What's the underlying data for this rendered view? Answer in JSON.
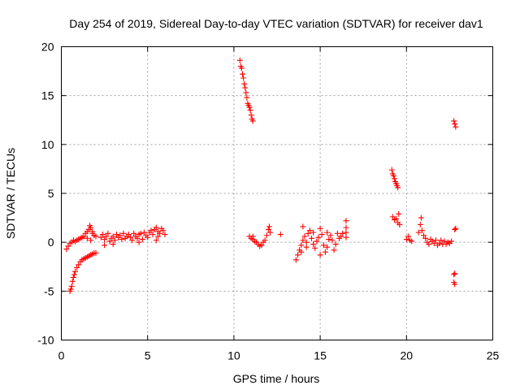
{
  "chart_data": {
    "type": "scatter",
    "title": "Day 254 of 2019, Sidereal Day-to-day VTEC variation (SDTVAR) for receiver dav1",
    "xlabel": "GPS time / hours",
    "ylabel": "SDTVAR / TECUs",
    "xlim": [
      0,
      25
    ],
    "ylim": [
      -10,
      20
    ],
    "x_ticks": [
      0,
      5,
      10,
      15,
      20,
      25
    ],
    "x_tick_labels": [
      "0",
      "5",
      "10",
      "15",
      "20",
      "25"
    ],
    "y_ticks": [
      -10,
      -5,
      0,
      5,
      10,
      15,
      20
    ],
    "y_tick_labels": [
      "-10",
      "-5",
      "0",
      "5",
      "10",
      "15",
      "20"
    ],
    "grid": true,
    "marker": "+",
    "series_color": "#ff0000",
    "series": [
      {
        "name": "dav1",
        "points": [
          [
            0.3,
            -0.7
          ],
          [
            0.4,
            -0.4
          ],
          [
            0.5,
            -0.1
          ],
          [
            0.6,
            0.0
          ],
          [
            0.7,
            0.2
          ],
          [
            0.8,
            0.1
          ],
          [
            0.9,
            0.2
          ],
          [
            1.0,
            0.3
          ],
          [
            1.1,
            0.4
          ],
          [
            1.2,
            0.5
          ],
          [
            1.3,
            0.6
          ],
          [
            1.4,
            0.9
          ],
          [
            1.5,
            1.1
          ],
          [
            1.6,
            1.3
          ],
          [
            1.65,
            1.7
          ],
          [
            1.7,
            1.5
          ],
          [
            1.8,
            1.1
          ],
          [
            1.9,
            0.7
          ],
          [
            2.0,
            0.6
          ],
          [
            1.7,
            0.2
          ],
          [
            1.5,
            0.4
          ],
          [
            1.8,
            0.9
          ],
          [
            0.5,
            -5.0
          ],
          [
            0.55,
            -4.8
          ],
          [
            0.6,
            -4.5
          ],
          [
            0.65,
            -4.0
          ],
          [
            0.7,
            -3.6
          ],
          [
            0.75,
            -3.3
          ],
          [
            0.8,
            -3.0
          ],
          [
            0.9,
            -2.6
          ],
          [
            1.0,
            -2.3
          ],
          [
            1.1,
            -2.0
          ],
          [
            1.2,
            -1.8
          ],
          [
            1.3,
            -1.7
          ],
          [
            1.4,
            -1.6
          ],
          [
            1.5,
            -1.5
          ],
          [
            1.6,
            -1.4
          ],
          [
            1.7,
            -1.3
          ],
          [
            1.8,
            -1.2
          ],
          [
            1.9,
            -1.1
          ],
          [
            2.0,
            -1.1
          ],
          [
            2.3,
            0.5
          ],
          [
            2.4,
            0.8
          ],
          [
            2.5,
            0.3
          ],
          [
            2.6,
            0.6
          ],
          [
            2.7,
            0.9
          ],
          [
            2.8,
            0.1
          ],
          [
            2.9,
            0.4
          ],
          [
            3.0,
            0.6
          ],
          [
            3.1,
            0.2
          ],
          [
            3.2,
            0.8
          ],
          [
            3.3,
            0.5
          ],
          [
            3.4,
            0.7
          ],
          [
            3.5,
            0.3
          ],
          [
            3.6,
            0.9
          ],
          [
            3.7,
            0.4
          ],
          [
            3.8,
            0.6
          ],
          [
            3.9,
            0.8
          ],
          [
            4.0,
            0.5
          ],
          [
            4.1,
            0.2
          ],
          [
            4.2,
            0.9
          ],
          [
            4.3,
            0.6
          ],
          [
            4.4,
            0.4
          ],
          [
            4.5,
            0.8
          ],
          [
            4.6,
            0.9
          ],
          [
            4.7,
            0.3
          ],
          [
            4.8,
            1.0
          ],
          [
            4.9,
            0.7
          ],
          [
            5.0,
            0.5
          ],
          [
            5.1,
            1.0
          ],
          [
            5.2,
            1.2
          ],
          [
            5.3,
            0.8
          ],
          [
            5.4,
            1.3
          ],
          [
            5.5,
            1.5
          ],
          [
            5.6,
            1.1
          ],
          [
            5.7,
            0.9
          ],
          [
            5.8,
            1.4
          ],
          [
            5.9,
            1.2
          ],
          [
            6.0,
            0.8
          ],
          [
            5.5,
            0.2
          ],
          [
            5.6,
            0.6
          ],
          [
            4.5,
            0.0
          ],
          [
            3.0,
            -0.2
          ],
          [
            2.5,
            -0.3
          ],
          [
            10.35,
            18.6
          ],
          [
            10.4,
            18.0
          ],
          [
            10.45,
            17.8
          ],
          [
            10.5,
            17.2
          ],
          [
            10.55,
            16.8
          ],
          [
            10.6,
            16.2
          ],
          [
            10.65,
            15.8
          ],
          [
            10.7,
            15.3
          ],
          [
            10.75,
            14.8
          ],
          [
            10.8,
            14.2
          ],
          [
            10.85,
            14.0
          ],
          [
            10.9,
            13.8
          ],
          [
            10.95,
            13.5
          ],
          [
            11.0,
            13.0
          ],
          [
            11.05,
            12.6
          ],
          [
            11.1,
            12.4
          ],
          [
            10.9,
            0.6
          ],
          [
            11.0,
            0.4
          ],
          [
            11.1,
            0.3
          ],
          [
            11.2,
            0.1
          ],
          [
            11.3,
            0.0
          ],
          [
            11.4,
            -0.2
          ],
          [
            11.5,
            -0.4
          ],
          [
            11.6,
            -0.3
          ],
          [
            11.7,
            0.0
          ],
          [
            11.8,
            0.2
          ],
          [
            11.9,
            0.7
          ],
          [
            12.0,
            1.3
          ],
          [
            12.05,
            1.6
          ],
          [
            12.1,
            1.0
          ],
          [
            11.1,
            0.6
          ],
          [
            12.7,
            0.8
          ],
          [
            13.6,
            -1.8
          ],
          [
            13.7,
            -1.3
          ],
          [
            13.8,
            -0.8
          ],
          [
            13.9,
            -0.3
          ],
          [
            14.0,
            0.2
          ],
          [
            14.1,
            0.6
          ],
          [
            14.2,
            -0.5
          ],
          [
            14.3,
            0.9
          ],
          [
            14.4,
            1.2
          ],
          [
            14.5,
            0.4
          ],
          [
            14.6,
            -0.2
          ],
          [
            14.7,
            -0.6
          ],
          [
            14.8,
            0.1
          ],
          [
            14.9,
            0.5
          ],
          [
            15.0,
            1.4
          ],
          [
            15.1,
            0.8
          ],
          [
            15.2,
            -0.3
          ],
          [
            15.3,
            -1.0
          ],
          [
            15.4,
            -0.5
          ],
          [
            15.5,
            0.3
          ],
          [
            15.6,
            0.7
          ],
          [
            15.7,
            0.2
          ],
          [
            15.8,
            -0.8
          ],
          [
            15.9,
            -0.2
          ],
          [
            16.0,
            0.9
          ],
          [
            16.1,
            0.4
          ],
          [
            16.2,
            0.6
          ],
          [
            16.3,
            0.9
          ],
          [
            14.0,
            1.6
          ],
          [
            13.9,
            -1.0
          ],
          [
            14.2,
            0.0
          ],
          [
            14.6,
            1.0
          ],
          [
            15.0,
            -1.3
          ],
          [
            15.4,
            1.0
          ],
          [
            16.5,
            1.5
          ],
          [
            16.5,
            2.2
          ],
          [
            16.5,
            0.5
          ],
          [
            16.5,
            1.0
          ],
          [
            19.15,
            7.4
          ],
          [
            19.2,
            7.0
          ],
          [
            19.25,
            6.8
          ],
          [
            19.3,
            6.5
          ],
          [
            19.35,
            6.2
          ],
          [
            19.4,
            6.0
          ],
          [
            19.45,
            5.8
          ],
          [
            19.5,
            5.6
          ],
          [
            19.2,
            2.6
          ],
          [
            19.3,
            2.3
          ],
          [
            19.4,
            2.4
          ],
          [
            19.5,
            2.0
          ],
          [
            19.6,
            1.8
          ],
          [
            19.55,
            2.9
          ],
          [
            20.0,
            0.3
          ],
          [
            20.1,
            0.6
          ],
          [
            20.2,
            0.2
          ],
          [
            20.3,
            0.1
          ],
          [
            20.7,
            1.0
          ],
          [
            20.8,
            1.8
          ],
          [
            20.85,
            2.5
          ],
          [
            20.9,
            1.2
          ],
          [
            21.0,
            0.7
          ],
          [
            21.1,
            0.4
          ],
          [
            21.2,
            0.0
          ],
          [
            21.3,
            -0.2
          ],
          [
            21.4,
            0.3
          ],
          [
            21.5,
            0.1
          ],
          [
            21.6,
            -0.1
          ],
          [
            21.7,
            0.2
          ],
          [
            21.8,
            -0.3
          ],
          [
            21.9,
            -0.1
          ],
          [
            22.0,
            0.2
          ],
          [
            22.1,
            -0.2
          ],
          [
            22.2,
            0.1
          ],
          [
            22.3,
            -0.2
          ],
          [
            22.4,
            0.0
          ],
          [
            22.5,
            -0.1
          ],
          [
            22.6,
            0.1
          ],
          [
            22.75,
            12.4
          ],
          [
            22.8,
            12.1
          ],
          [
            22.85,
            11.8
          ],
          [
            22.8,
            1.3
          ],
          [
            22.85,
            1.4
          ],
          [
            22.75,
            -3.3
          ],
          [
            22.8,
            -3.2
          ],
          [
            22.75,
            -4.1
          ],
          [
            22.8,
            -4.3
          ]
        ]
      }
    ]
  }
}
